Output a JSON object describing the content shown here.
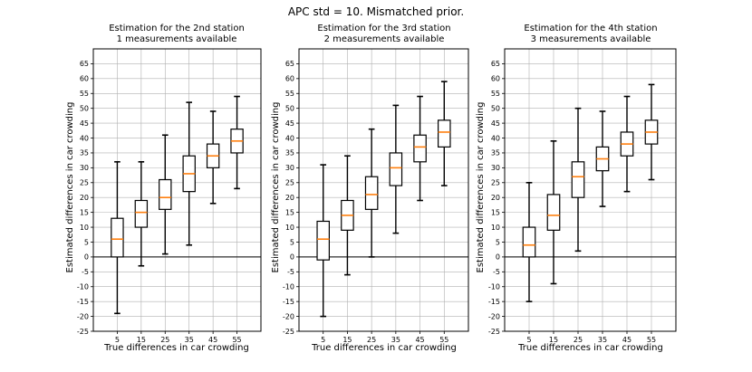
{
  "suptitle": "APC std = 10. Mismatched prior.",
  "chart_data": [
    {
      "type": "boxplot",
      "title_line1": "Estimation for the 2nd station",
      "title_line2": "1 measurements available",
      "xlabel": "True differences in car crowding",
      "ylabel": "Estimated differences in car crowding",
      "categories": [
        "5",
        "15",
        "25",
        "35",
        "45",
        "55"
      ],
      "ylim": [
        -25,
        70
      ],
      "yticks": [
        -25,
        -20,
        -15,
        -10,
        -5,
        0,
        5,
        10,
        15,
        20,
        25,
        30,
        35,
        40,
        45,
        50,
        55,
        60,
        65
      ],
      "hline": 0,
      "grid": true,
      "boxes": [
        {
          "whislo": -19,
          "q1": 0,
          "med": 6,
          "q3": 13,
          "whishi": 32
        },
        {
          "whislo": -3,
          "q1": 10,
          "med": 15,
          "q3": 19,
          "whishi": 32
        },
        {
          "whislo": 1,
          "q1": 16,
          "med": 20,
          "q3": 26,
          "whishi": 41
        },
        {
          "whislo": 4,
          "q1": 22,
          "med": 28,
          "q3": 34,
          "whishi": 52
        },
        {
          "whislo": 18,
          "q1": 30,
          "med": 34,
          "q3": 38,
          "whishi": 49
        },
        {
          "whislo": 23,
          "q1": 35,
          "med": 39,
          "q3": 43,
          "whishi": 54
        }
      ]
    },
    {
      "type": "boxplot",
      "title_line1": "Estimation for the 3rd station",
      "title_line2": "2 measurements available",
      "xlabel": "True differences in car crowding",
      "ylabel": "Estimated differences in car crowding",
      "categories": [
        "5",
        "15",
        "25",
        "35",
        "45",
        "55"
      ],
      "ylim": [
        -25,
        70
      ],
      "yticks": [
        -25,
        -20,
        -15,
        -10,
        -5,
        0,
        5,
        10,
        15,
        20,
        25,
        30,
        35,
        40,
        45,
        50,
        55,
        60,
        65
      ],
      "hline": 0,
      "grid": true,
      "boxes": [
        {
          "whislo": -20,
          "q1": -1,
          "med": 6,
          "q3": 12,
          "whishi": 31
        },
        {
          "whislo": -6,
          "q1": 9,
          "med": 14,
          "q3": 19,
          "whishi": 34
        },
        {
          "whislo": 0,
          "q1": 16,
          "med": 21,
          "q3": 27,
          "whishi": 43
        },
        {
          "whislo": 8,
          "q1": 24,
          "med": 30,
          "q3": 35,
          "whishi": 51
        },
        {
          "whislo": 19,
          "q1": 32,
          "med": 37,
          "q3": 41,
          "whishi": 54
        },
        {
          "whislo": 24,
          "q1": 37,
          "med": 42,
          "q3": 46,
          "whishi": 59
        }
      ]
    },
    {
      "type": "boxplot",
      "title_line1": "Estimation for the 4th station",
      "title_line2": "3 measurements available",
      "xlabel": "True differences in car crowding",
      "ylabel": "Estimated differences in car crowding",
      "categories": [
        "5",
        "15",
        "25",
        "35",
        "45",
        "55"
      ],
      "ylim": [
        -25,
        70
      ],
      "yticks": [
        -25,
        -20,
        -15,
        -10,
        -5,
        0,
        5,
        10,
        15,
        20,
        25,
        30,
        35,
        40,
        45,
        50,
        55,
        60,
        65
      ],
      "hline": 0,
      "grid": true,
      "boxes": [
        {
          "whislo": -15,
          "q1": 0,
          "med": 4,
          "q3": 10,
          "whishi": 25
        },
        {
          "whislo": -9,
          "q1": 9,
          "med": 14,
          "q3": 21,
          "whishi": 39
        },
        {
          "whislo": 2,
          "q1": 20,
          "med": 27,
          "q3": 32,
          "whishi": 50
        },
        {
          "whislo": 17,
          "q1": 29,
          "med": 33,
          "q3": 37,
          "whishi": 49
        },
        {
          "whislo": 22,
          "q1": 34,
          "med": 38,
          "q3": 42,
          "whishi": 54
        },
        {
          "whislo": 26,
          "q1": 38,
          "med": 42,
          "q3": 46,
          "whishi": 58
        }
      ]
    }
  ],
  "colors": {
    "median": "#ff7f0e",
    "box": "#000000",
    "grid": "#b0b0b0",
    "background": "#ffffff"
  }
}
